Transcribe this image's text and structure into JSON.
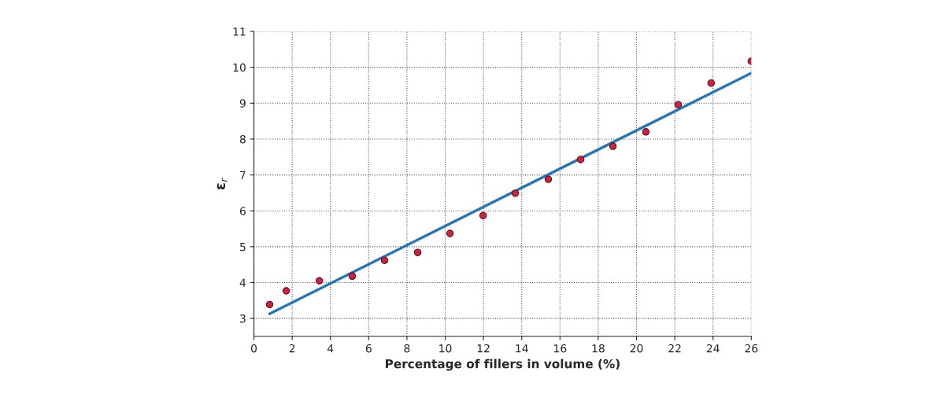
{
  "chart_data": {
    "type": "scatter",
    "xlabel": "Percentage of fillers in volume (%)",
    "ylabel": "ε$_{r}$",
    "xlim": [
      0,
      26
    ],
    "xticks": [
      0,
      2,
      4,
      6,
      8,
      10,
      12,
      14,
      16,
      18,
      20,
      22,
      24,
      26
    ],
    "ylim": [
      2.5,
      11
    ],
    "yticks": [
      3,
      4,
      5,
      6,
      7,
      8,
      9,
      10,
      11
    ],
    "grid": true,
    "series": [
      {
        "marker": "circle",
        "color": "#d2213f",
        "x": [
          0.82,
          1.69,
          3.42,
          5.14,
          6.83,
          8.56,
          10.25,
          11.98,
          13.66,
          15.39,
          17.08,
          18.77,
          20.49,
          22.18,
          23.9,
          26.0
        ],
        "values": [
          3.39,
          3.77,
          4.05,
          4.18,
          4.62,
          4.84,
          5.37,
          5.87,
          6.49,
          6.88,
          7.43,
          7.8,
          8.2,
          8.96,
          9.56,
          10.17
        ]
      },
      {
        "type": "line",
        "color": "#2677b4",
        "x": [
          0.82,
          26.0
        ],
        "values": [
          3.13,
          9.84
        ]
      }
    ]
  }
}
